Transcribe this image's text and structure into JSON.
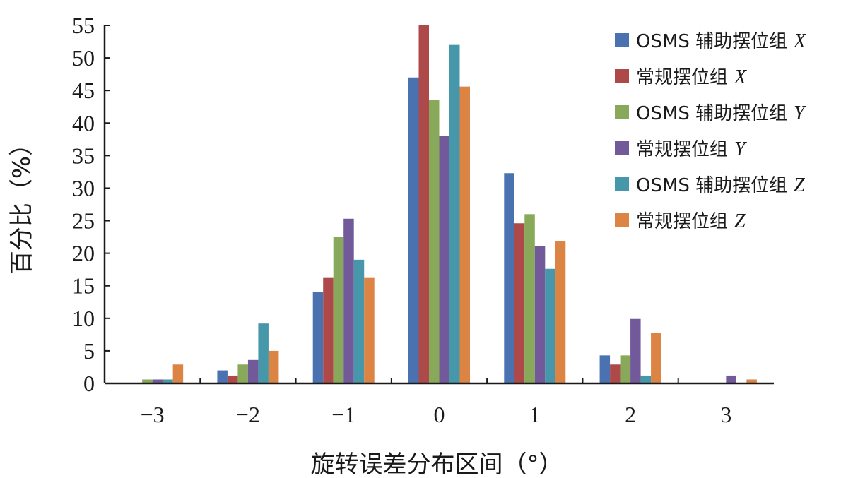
{
  "chart_data": {
    "type": "bar",
    "title": "",
    "xlabel": "旋转误差分布区间（°）",
    "ylabel": "百分比（%）",
    "categories": [
      "−3",
      "−2",
      "−1",
      "0",
      "1",
      "2",
      "3"
    ],
    "ylim": [
      0,
      55
    ],
    "yticks": [
      0,
      5,
      10,
      15,
      20,
      25,
      30,
      35,
      40,
      45,
      50,
      55
    ],
    "grid": false,
    "legend_position": "top-right",
    "series": [
      {
        "name": "OSMS 辅助摆位组",
        "axis": "X",
        "color": "#4a72b0",
        "values": [
          0,
          2,
          14,
          47,
          32.3,
          4.3,
          0
        ]
      },
      {
        "name": "常规摆位组",
        "axis": "X",
        "color": "#ad4a49",
        "values": [
          0,
          1.2,
          16.2,
          55,
          24.6,
          2.9,
          0
        ]
      },
      {
        "name": "OSMS 辅助摆位组",
        "axis": "Y",
        "color": "#88a95a",
        "values": [
          0.6,
          2.9,
          22.5,
          43.5,
          26,
          4.3,
          0
        ]
      },
      {
        "name": "常规摆位组",
        "axis": "Y",
        "color": "#71599a",
        "values": [
          0.6,
          3.6,
          25.3,
          38,
          21.1,
          9.9,
          1.2
        ]
      },
      {
        "name": "OSMS 辅助摆位组",
        "axis": "Z",
        "color": "#4597a9",
        "values": [
          0.6,
          9.2,
          19,
          52,
          17.6,
          1.2,
          0
        ]
      },
      {
        "name": "常规摆位组",
        "axis": "Z",
        "color": "#db8444",
        "values": [
          2.9,
          5,
          16.2,
          45.6,
          21.8,
          7.8,
          0.6
        ]
      }
    ]
  }
}
